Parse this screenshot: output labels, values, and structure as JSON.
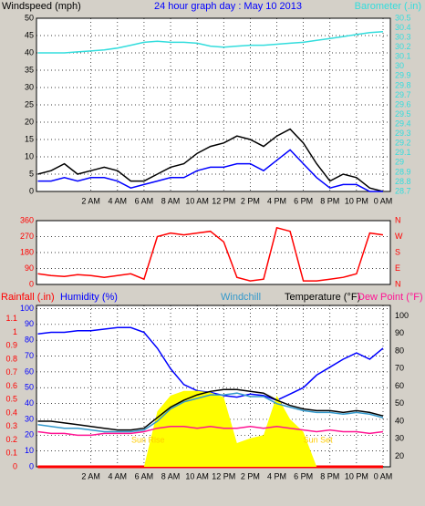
{
  "chart_data": [
    {
      "type": "line",
      "title": "24 hour graph day : May 10 2013",
      "title_color": "#0000ff",
      "x": [
        -2,
        -1,
        0,
        1,
        2,
        3,
        4,
        5,
        6,
        7,
        8,
        9,
        10,
        11,
        12,
        13,
        14,
        15,
        16,
        17,
        18,
        19,
        20,
        21,
        22,
        23,
        24
      ],
      "xlim": [
        -2.1,
        24.55
      ],
      "xticks": [
        {
          "value": 2,
          "label": "2 AM"
        },
        {
          "value": 4,
          "label": "4 AM"
        },
        {
          "value": 6,
          "label": "6 AM"
        },
        {
          "value": 8,
          "label": "8 AM"
        },
        {
          "value": 10,
          "label": "10 AM"
        },
        {
          "value": 12,
          "label": "12 PM"
        },
        {
          "value": 14,
          "label": "2 PM"
        },
        {
          "value": 16,
          "label": "4 PM"
        },
        {
          "value": 18,
          "label": "6 PM"
        },
        {
          "value": 20,
          "label": "8 PM"
        },
        {
          "value": 22,
          "label": "10 PM"
        },
        {
          "value": 24,
          "label": "0 AM"
        }
      ],
      "ylim": [
        0,
        50
      ],
      "yticks": [
        0,
        5,
        10,
        15,
        20,
        25,
        30,
        35,
        40,
        45,
        50
      ],
      "ycolor": "#000000",
      "y2lim": [
        28.7,
        30.5
      ],
      "y2ticks": [
        28.7,
        28.8,
        28.9,
        29,
        29.1,
        29.2,
        29.3,
        29.4,
        29.5,
        29.6,
        29.7,
        29.8,
        29.9,
        30,
        30.1,
        30.2,
        30.3,
        30.4,
        30.5
      ],
      "y2color": "#33dddd",
      "grid": true,
      "series": [
        {
          "name": "Windspeed (mph)",
          "color": "#000000",
          "values": [
            5,
            6,
            8,
            5,
            6,
            7,
            6,
            3,
            3,
            5,
            7,
            8,
            11,
            13,
            14,
            16,
            15,
            13,
            16,
            18,
            14,
            8,
            3,
            5,
            4,
            1,
            0
          ]
        },
        {
          "color": "#0000ff",
          "values": [
            3,
            3,
            4,
            3,
            4,
            4,
            3,
            1,
            2,
            3,
            4,
            4,
            6,
            7,
            7,
            8,
            8,
            6,
            9,
            12,
            8,
            4,
            1,
            2,
            2,
            0,
            0
          ]
        },
        {
          "name": "Barometer (.in)",
          "color": "#33dddd",
          "axis": "y2",
          "values": [
            30.14,
            30.14,
            30.14,
            30.15,
            30.16,
            30.17,
            30.19,
            30.22,
            30.25,
            30.26,
            30.25,
            30.25,
            30.24,
            30.21,
            30.2,
            30.21,
            30.22,
            30.22,
            30.23,
            30.24,
            30.25,
            30.27,
            30.29,
            30.31,
            30.33,
            30.35,
            30.36
          ]
        }
      ]
    },
    {
      "type": "line",
      "x": [
        -2,
        -1,
        0,
        1,
        2,
        3,
        4,
        5,
        6,
        7,
        8,
        9,
        10,
        11,
        12,
        13,
        14,
        15,
        16,
        17,
        18,
        19,
        20,
        21,
        22,
        23,
        24
      ],
      "xlim": [
        -2.1,
        24.55
      ],
      "ylim": [
        0,
        360
      ],
      "yticks": [
        0,
        90,
        180,
        270,
        360
      ],
      "ycolor": "#ff0000",
      "y2lim": [
        0,
        360
      ],
      "y2ticks": [
        {
          "value": 360,
          "label": "N"
        },
        {
          "value": 270,
          "label": "W"
        },
        {
          "value": 180,
          "label": "S"
        },
        {
          "value": 90,
          "label": "E"
        },
        {
          "value": 0,
          "label": "N"
        }
      ],
      "y2color": "#ff0000",
      "grid": true,
      "series": [
        {
          "color": "#ff0000",
          "values": [
            60,
            50,
            45,
            55,
            50,
            40,
            50,
            60,
            30,
            270,
            290,
            280,
            290,
            300,
            240,
            40,
            20,
            30,
            320,
            300,
            20,
            20,
            30,
            40,
            60,
            290,
            280
          ]
        }
      ]
    },
    {
      "type": "line",
      "x": [
        -2,
        -1,
        0,
        1,
        2,
        3,
        4,
        5,
        6,
        7,
        8,
        9,
        10,
        11,
        12,
        13,
        14,
        15,
        16,
        17,
        18,
        19,
        20,
        21,
        22,
        23,
        24
      ],
      "xlim": [
        -2.1,
        24.55
      ],
      "xticks": [
        {
          "value": 2,
          "label": "2 AM"
        },
        {
          "value": 4,
          "label": "4 AM"
        },
        {
          "value": 6,
          "label": "6 AM"
        },
        {
          "value": 8,
          "label": "8 AM"
        },
        {
          "value": 10,
          "label": "10 AM"
        },
        {
          "value": 12,
          "label": "12 PM"
        },
        {
          "value": 14,
          "label": "2 PM"
        },
        {
          "value": 16,
          "label": "4 PM"
        },
        {
          "value": 18,
          "label": "6 PM"
        },
        {
          "value": 20,
          "label": "8 PM"
        },
        {
          "value": 22,
          "label": "10 PM"
        },
        {
          "value": 24,
          "label": "0 AM"
        }
      ],
      "ylim": [
        0,
        102
      ],
      "yticks": [
        0,
        10,
        20,
        30,
        40,
        50,
        60,
        70,
        80,
        90,
        100
      ],
      "ycolor": "#0000ff",
      "y2lim": [
        14,
        106
      ],
      "y2ticks": [
        20,
        30,
        40,
        50,
        60,
        70,
        80,
        90,
        100
      ],
      "y2color": "#000000",
      "y3lim": [
        0,
        1.2
      ],
      "y3ticks": [
        0,
        0.1,
        0.2,
        0.3,
        0.4,
        0.5,
        0.6,
        0.7,
        0.8,
        0.9,
        1,
        1.1
      ],
      "y3color": "#ff0000",
      "grid": true,
      "annotations": [
        {
          "text": "Sun Rise",
          "x": 6.3
        },
        {
          "text": "Sun Set",
          "x": 19.1
        }
      ],
      "annotation_color": "#ffcc00",
      "series": [
        {
          "name": "Rainfall (.in)",
          "color": "#ff0000",
          "axis": "y3",
          "values": [
            0,
            0,
            0,
            0,
            0,
            0,
            0,
            0,
            0,
            0,
            0,
            0,
            0,
            0,
            0,
            0,
            0,
            0,
            0,
            0,
            0,
            0,
            0,
            0,
            0,
            0,
            0
          ]
        },
        {
          "name": "Humidity (%)",
          "color": "#0000ff",
          "values": [
            84,
            85,
            85,
            86,
            86,
            87,
            88,
            88,
            85,
            75,
            62,
            52,
            48,
            47,
            45,
            44,
            46,
            45,
            42,
            46,
            50,
            58,
            63,
            68,
            72,
            68,
            75
          ]
        },
        {
          "color": "#ffff00",
          "area": true,
          "values": [
            0,
            0,
            0,
            0,
            0,
            0,
            0,
            0,
            0,
            35,
            45,
            48,
            48,
            47,
            44,
            15,
            18,
            20,
            45,
            30,
            22,
            0,
            0,
            0,
            0,
            0,
            0
          ]
        },
        {
          "name": "Windchill",
          "color": "#3399cc",
          "axis": "y2",
          "values": [
            38,
            37,
            36,
            36,
            35,
            34,
            34,
            34,
            35,
            40,
            47,
            51,
            53,
            55,
            55,
            56,
            54,
            54,
            50,
            48,
            46,
            45,
            45,
            44,
            45,
            44,
            42
          ]
        },
        {
          "name": "Temperature (°F)",
          "color": "#000000",
          "axis": "y2",
          "values": [
            40,
            40,
            39,
            38,
            37,
            36,
            35,
            35,
            36,
            42,
            48,
            52,
            55,
            57,
            58,
            58,
            57,
            56,
            52,
            49,
            47,
            46,
            46,
            45,
            46,
            45,
            43
          ]
        },
        {
          "name": "Dew Point (°F)",
          "color": "#ff1493",
          "axis": "y2",
          "values": [
            34,
            33,
            33,
            32,
            32,
            33,
            33,
            33,
            34,
            36,
            37,
            37,
            36,
            37,
            36,
            36,
            37,
            36,
            37,
            36,
            35,
            34,
            35,
            34,
            34,
            33,
            34
          ]
        }
      ]
    }
  ]
}
